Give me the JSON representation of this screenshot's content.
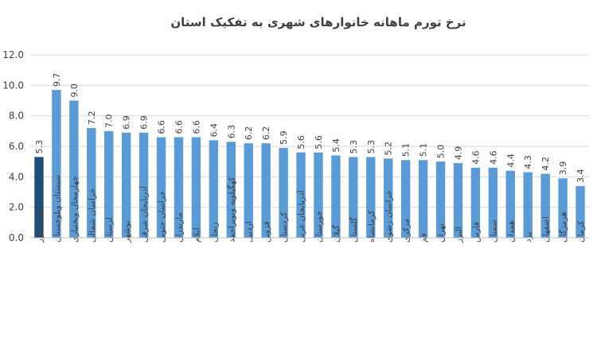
{
  "colors": {
    "bar": "#5b9bd5",
    "highlight_bar": "#1f4e79",
    "grid": "#d9d9d9",
    "text": "#404040"
  },
  "chart_data": {
    "type": "bar",
    "title": "نرخ تورم ماهانه خانوارهای شهری به تفکیک استان",
    "xlabel": "",
    "ylabel": "",
    "ylim": [
      0,
      12
    ],
    "yticks": [
      "0.0",
      "2.0",
      "4.0",
      "6.0",
      "8.0",
      "10.0",
      "12.0"
    ],
    "grid": true,
    "legend": "none",
    "highlight_index": 0,
    "categories": [
      "کل کشور",
      "سیستان وبلوچستان",
      "چهارمحال وبختیاری",
      "خراسان شمالی",
      "لرستان",
      "بوشهر",
      "آذربایجان شرقی",
      "خراسان جنوبی",
      "مازندران",
      "ایلام",
      "زنجان",
      "کهگیلویه وبویراحمد",
      "اردبیل",
      "قزوین",
      "کردستان",
      "آذربایجان غربی",
      "خوزستان",
      "گیلان",
      "گلستان",
      "کرمانشاه",
      "خراسان رضوی",
      "مرکزی",
      "قم",
      "تهران",
      "البرز",
      "فارس",
      "سمنان",
      "همدان",
      "یزد",
      "اصفهان",
      "هرمزگان",
      "کرمان"
    ],
    "values": [
      5.3,
      9.7,
      9.0,
      7.2,
      7.0,
      6.9,
      6.9,
      6.6,
      6.6,
      6.6,
      6.4,
      6.3,
      6.2,
      6.2,
      5.9,
      5.6,
      5.6,
      5.4,
      5.3,
      5.3,
      5.2,
      5.1,
      5.1,
      5.0,
      4.9,
      4.6,
      4.6,
      4.4,
      4.3,
      4.2,
      3.9,
      3.4
    ],
    "value_labels": [
      "5.3",
      "9.7",
      "9.0",
      "7.2",
      "7.0",
      "6.9",
      "6.9",
      "6.6",
      "6.6",
      "6.6",
      "6.4",
      "6.3",
      "6.2",
      "6.2",
      "5.9",
      "5.6",
      "5.6",
      "5.4",
      "5.3",
      "5.3",
      "5.2",
      "5.1",
      "5.1",
      "5.0",
      "4.9",
      "4.6",
      "4.6",
      "4.4",
      "4.3",
      "4.2",
      "3.9",
      "3.4"
    ]
  }
}
